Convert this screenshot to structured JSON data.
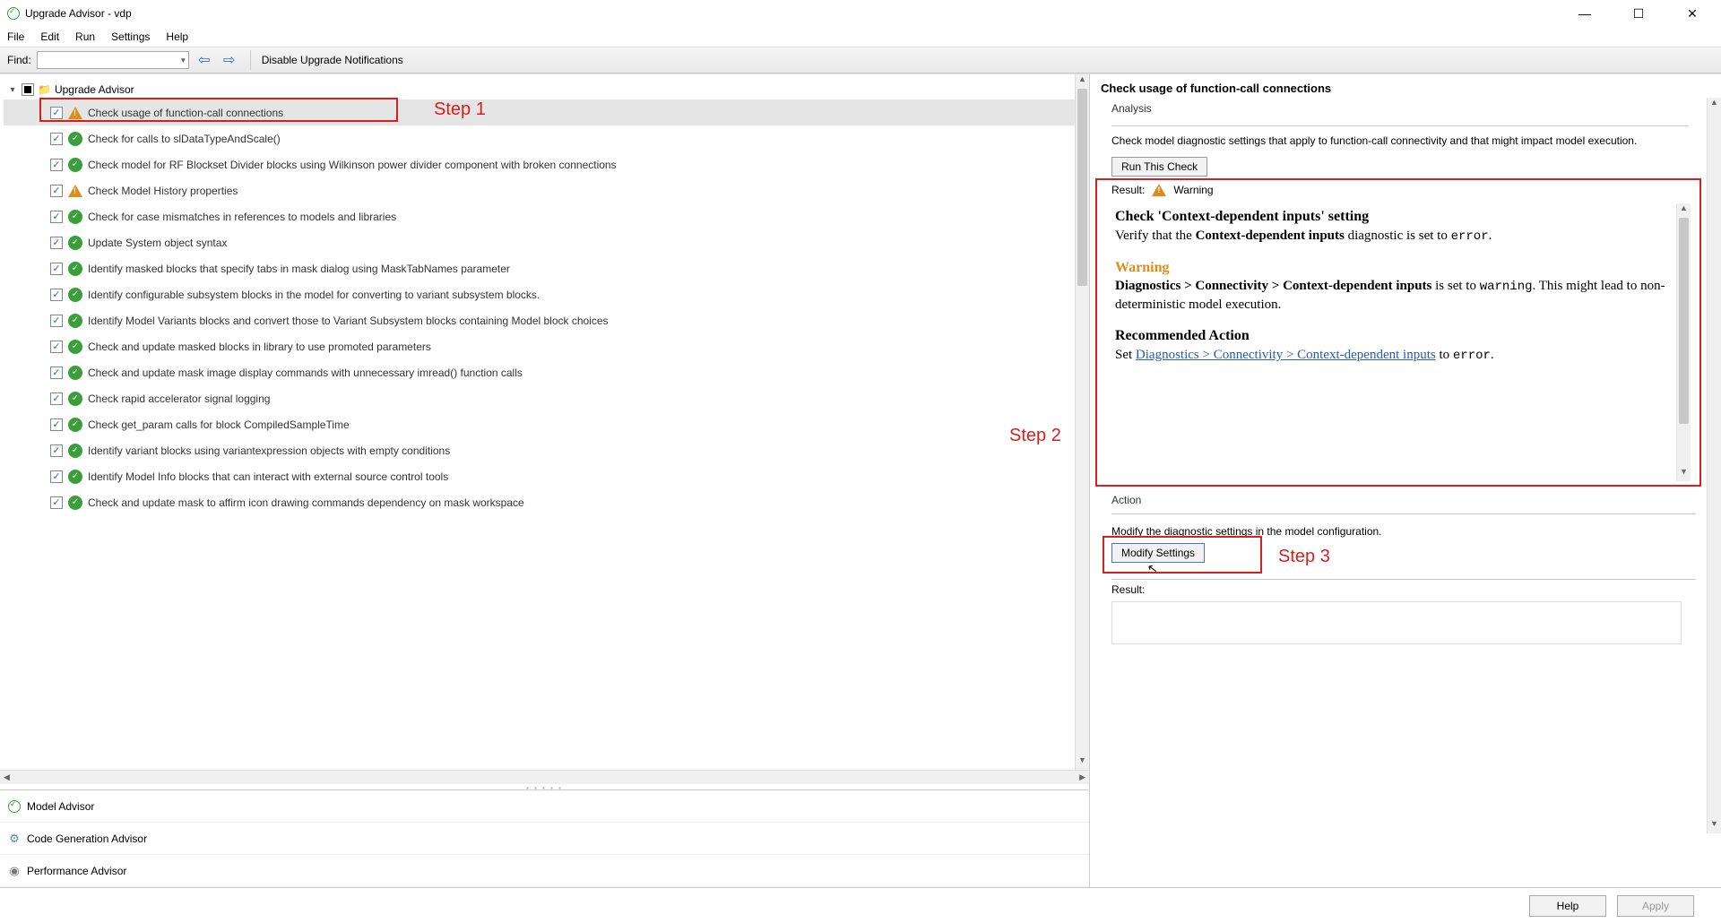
{
  "window": {
    "title": "Upgrade Advisor - vdp"
  },
  "menu": {
    "file": "File",
    "edit": "Edit",
    "run": "Run",
    "settings": "Settings",
    "help": "Help"
  },
  "toolbar": {
    "find_label": "Find:",
    "disable_link": "Disable Upgrade Notifications"
  },
  "tree": {
    "root": "Upgrade Advisor",
    "items": [
      {
        "label": "Check usage of function-call connections",
        "status": "warn",
        "selected": true
      },
      {
        "label": "Check for calls to slDataTypeAndScale()",
        "status": "pass"
      },
      {
        "label": "Check model for RF Blockset Divider blocks using Wilkinson power divider component with broken connections",
        "status": "pass"
      },
      {
        "label": "Check Model History properties",
        "status": "warn"
      },
      {
        "label": "Check for case mismatches in references to models and libraries",
        "status": "pass"
      },
      {
        "label": "Update System object syntax",
        "status": "pass"
      },
      {
        "label": "Identify masked blocks that specify tabs in mask dialog using MaskTabNames parameter",
        "status": "pass"
      },
      {
        "label": "Identify configurable subsystem blocks in the model for converting to variant subsystem blocks.",
        "status": "pass"
      },
      {
        "label": "Identify Model Variants blocks and convert those to Variant Subsystem blocks containing Model block choices",
        "status": "pass"
      },
      {
        "label": "Check and update masked blocks in library to use promoted parameters",
        "status": "pass"
      },
      {
        "label": "Check and update mask image display commands with unnecessary imread() function calls",
        "status": "pass"
      },
      {
        "label": "Check rapid accelerator signal logging",
        "status": "pass"
      },
      {
        "label": "Check get_param calls for block CompiledSampleTime",
        "status": "pass"
      },
      {
        "label": "Identify variant blocks using variantexpression objects with empty conditions",
        "status": "pass"
      },
      {
        "label": "Identify Model Info blocks that can interact with external source control tools",
        "status": "pass"
      },
      {
        "label": "Check and update mask to affirm icon drawing commands dependency on mask workspace",
        "status": "pass"
      }
    ]
  },
  "annotations": {
    "step1": "Step 1",
    "step2": "Step 2",
    "step3": "Step 3",
    "step1_box": {
      "color": "#d62020"
    },
    "label_color": "#d62020"
  },
  "advisors": {
    "model": "Model Advisor",
    "codegen": "Code Generation Advisor",
    "performance": "Performance Advisor"
  },
  "details": {
    "title": "Check usage of function-call connections",
    "analysis_header": "Analysis",
    "analysis_text": "Check model diagnostic settings that apply to function-call connectivity and that might impact model execution.",
    "run_button": "Run This Check",
    "result_label": "Result:",
    "result_status": "Warning",
    "explain": {
      "h1": "Check 'Context-dependent inputs' setting",
      "line1a": "Verify that the ",
      "line1b": "Context-dependent inputs",
      "line1c": " diagnostic is set to ",
      "line1d": "error",
      "line1e": ".",
      "warn_h": "Warning",
      "path": "Diagnostics > Connectivity > Context-dependent inputs",
      "line2a": " is set to ",
      "line2b": "warning",
      "line2c": ". This might lead to non-deterministic model execution.",
      "rec_h": "Recommended Action",
      "line3a": "Set ",
      "link": "Diagnostics > Connectivity > Context-dependent inputs",
      "line3b": " to ",
      "line3c": "error",
      "line3d": "."
    },
    "action_header": "Action",
    "action_text": "Modify the diagnostic settings in the model configuration.",
    "modify_button": "Modify Settings",
    "result2_label": "Result:"
  },
  "footer": {
    "help": "Help",
    "apply": "Apply"
  }
}
